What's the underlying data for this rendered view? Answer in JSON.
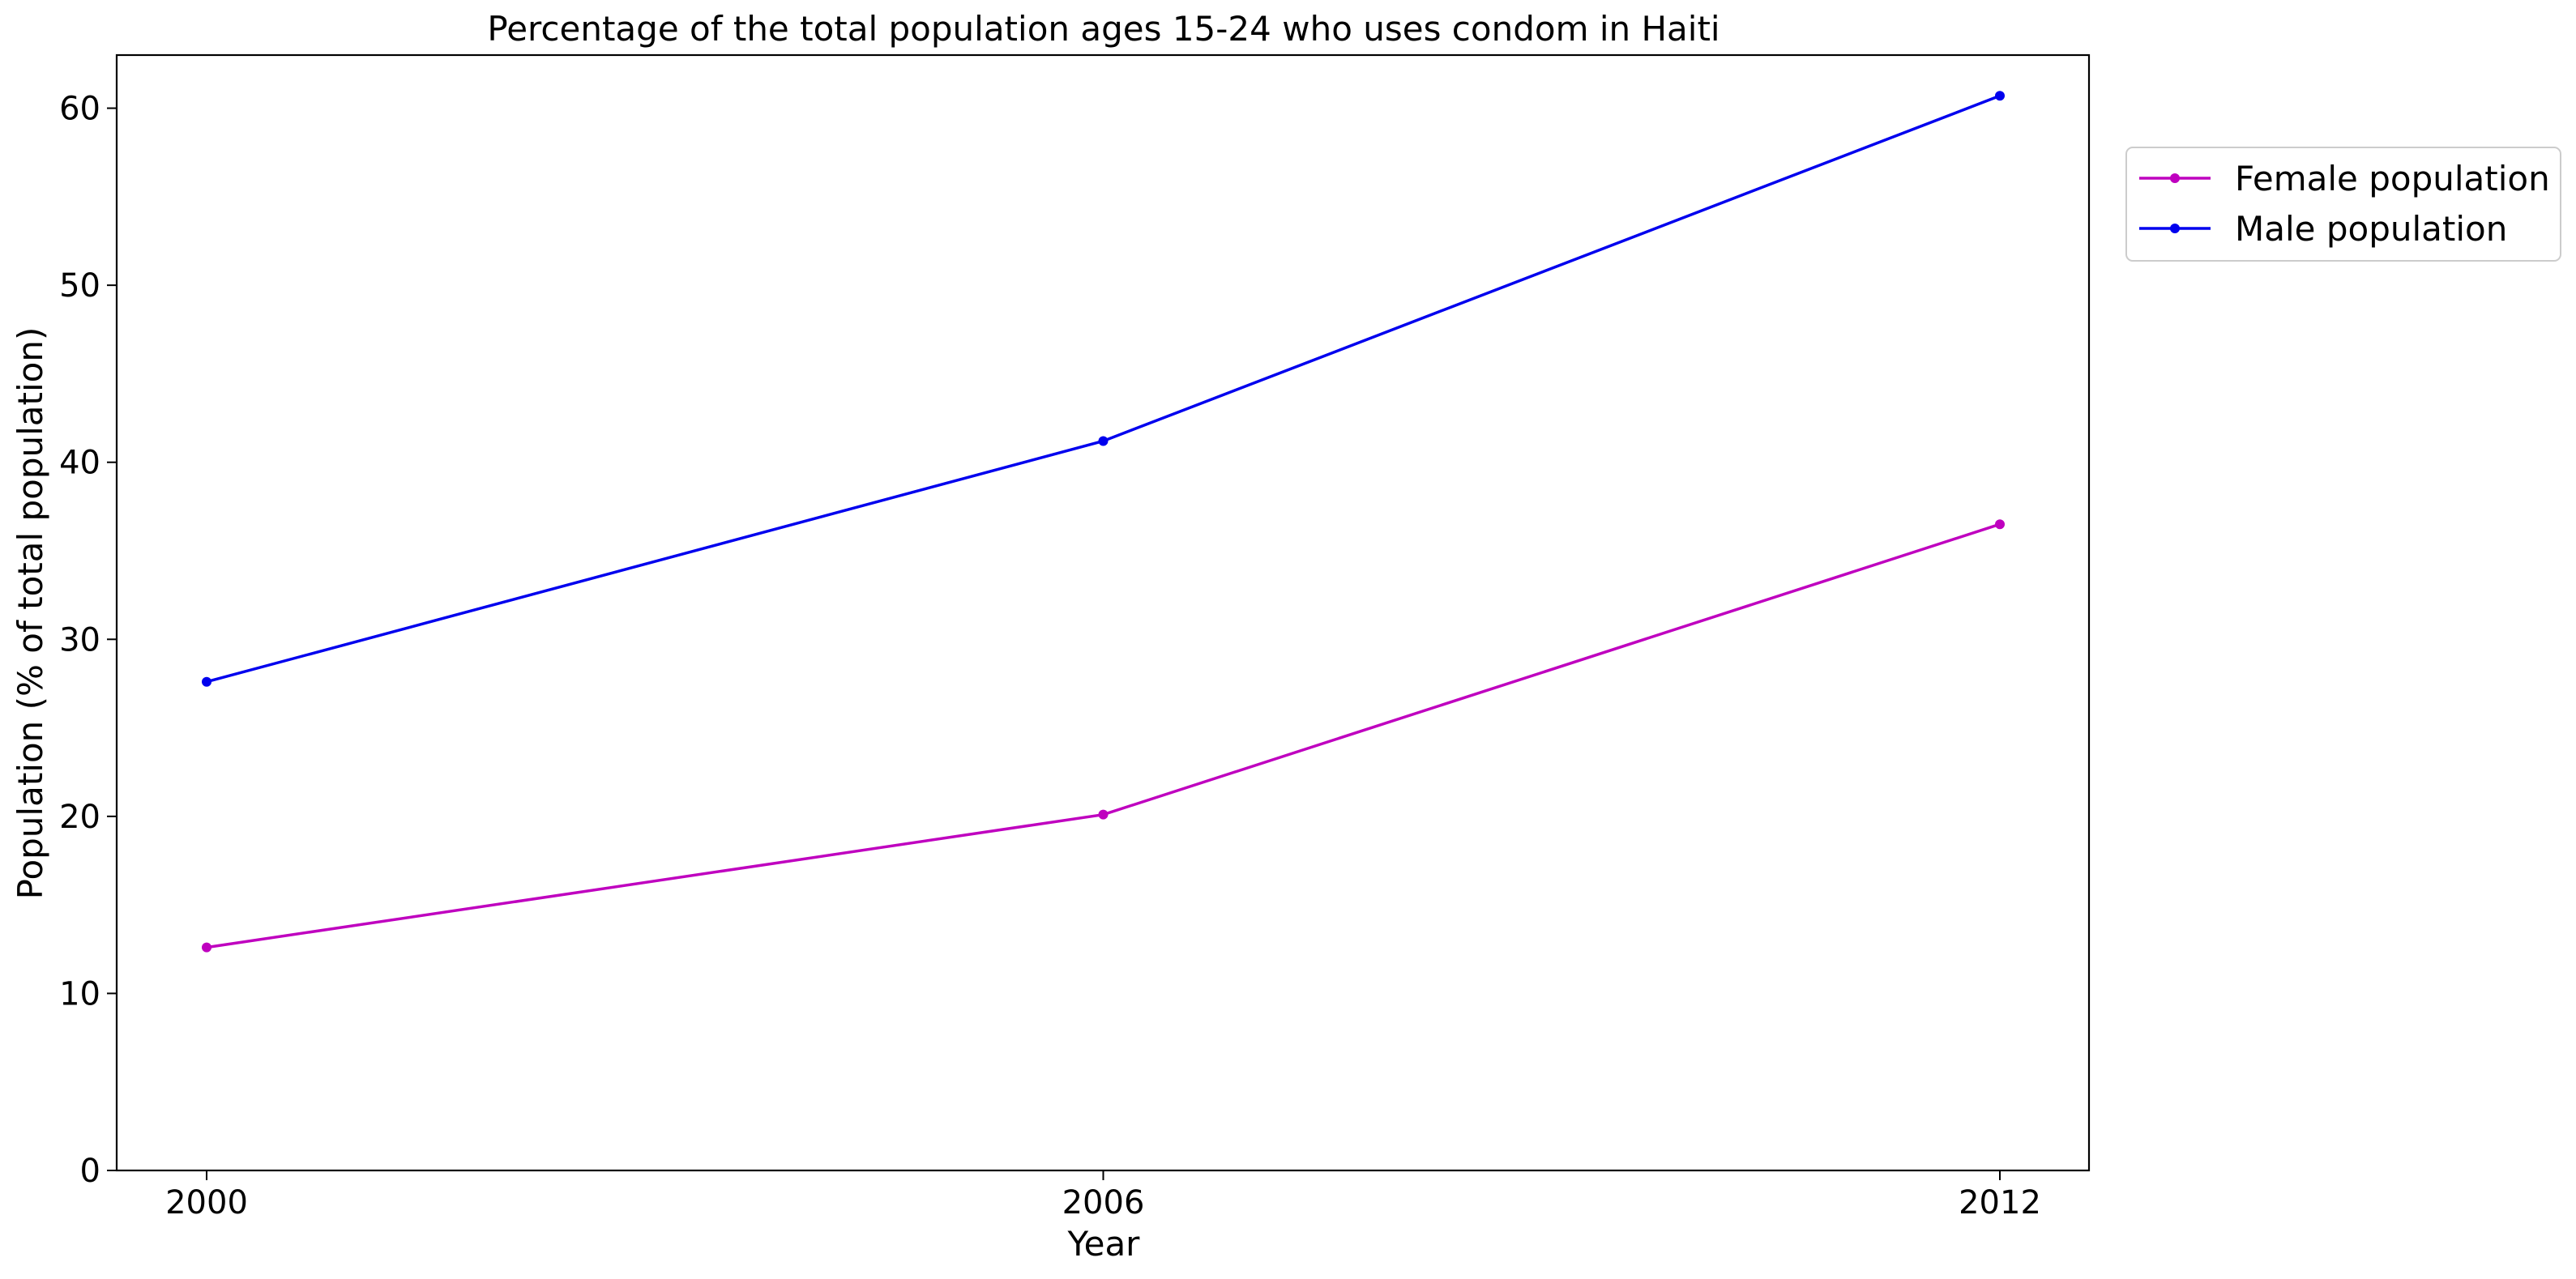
{
  "chart_data": {
    "type": "line",
    "title": "Percentage of the total population ages 15-24 who uses condom in Haiti",
    "xlabel": "Year",
    "ylabel": "Population (% of total population)",
    "x": [
      "2000",
      "2006",
      "2012"
    ],
    "xlim": [
      2000,
      2012
    ],
    "ylim": [
      0,
      63
    ],
    "yticks": [
      0,
      10,
      20,
      30,
      40,
      50,
      60
    ],
    "grid": false,
    "legend_position": "outside-upper-right",
    "series": [
      {
        "name": "Female population",
        "color": "#bf00bf",
        "marker": "dot",
        "values": [
          12.6,
          20.1,
          36.5
        ]
      },
      {
        "name": "Male population",
        "color": "#0000ee",
        "marker": "dot",
        "values": [
          27.6,
          41.2,
          60.7
        ]
      }
    ]
  }
}
